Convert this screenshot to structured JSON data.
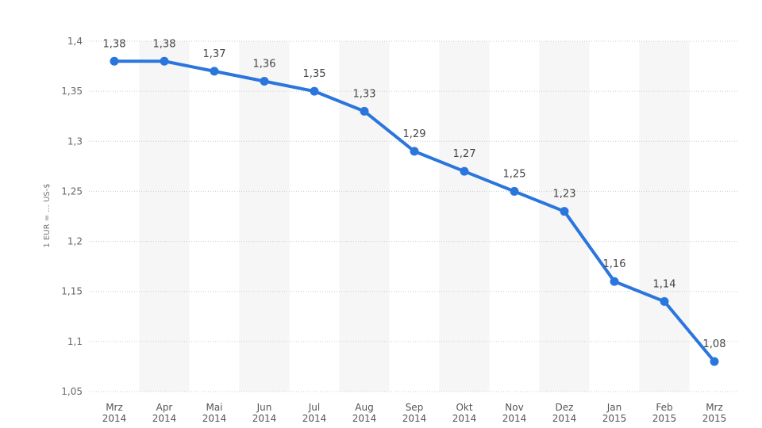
{
  "chart_data": {
    "type": "line",
    "ylabel": "1 EUR = ... US-$",
    "ylim": [
      1.05,
      1.4
    ],
    "yticks": [
      "1,05",
      "1,1",
      "1,15",
      "1,2",
      "1,25",
      "1,3",
      "1,35",
      "1,4"
    ],
    "categories": [
      {
        "month": "Mrz",
        "year": "2014"
      },
      {
        "month": "Apr",
        "year": "2014"
      },
      {
        "month": "Mai",
        "year": "2014"
      },
      {
        "month": "Jun",
        "year": "2014"
      },
      {
        "month": "Jul",
        "year": "2014"
      },
      {
        "month": "Aug",
        "year": "2014"
      },
      {
        "month": "Sep",
        "year": "2014"
      },
      {
        "month": "Okt",
        "year": "2014"
      },
      {
        "month": "Nov",
        "year": "2014"
      },
      {
        "month": "Dez",
        "year": "2014"
      },
      {
        "month": "Jan",
        "year": "2015"
      },
      {
        "month": "Feb",
        "year": "2015"
      },
      {
        "month": "Mrz",
        "year": "2015"
      }
    ],
    "series": [
      {
        "values": [
          1.38,
          1.38,
          1.37,
          1.36,
          1.35,
          1.33,
          1.29,
          1.27,
          1.25,
          1.23,
          1.16,
          1.14,
          1.08
        ],
        "labels": [
          "1,38",
          "1,38",
          "1,37",
          "1,36",
          "1,35",
          "1,33",
          "1,29",
          "1,27",
          "1,25",
          "1,23",
          "1,16",
          "1,14",
          "1,08"
        ]
      }
    ],
    "grid": true,
    "alternating_band_fill": true,
    "colors": {
      "line": "#2a76dd",
      "band": "#f6f6f6",
      "grid": "#cccccc",
      "text": "#555555"
    }
  }
}
